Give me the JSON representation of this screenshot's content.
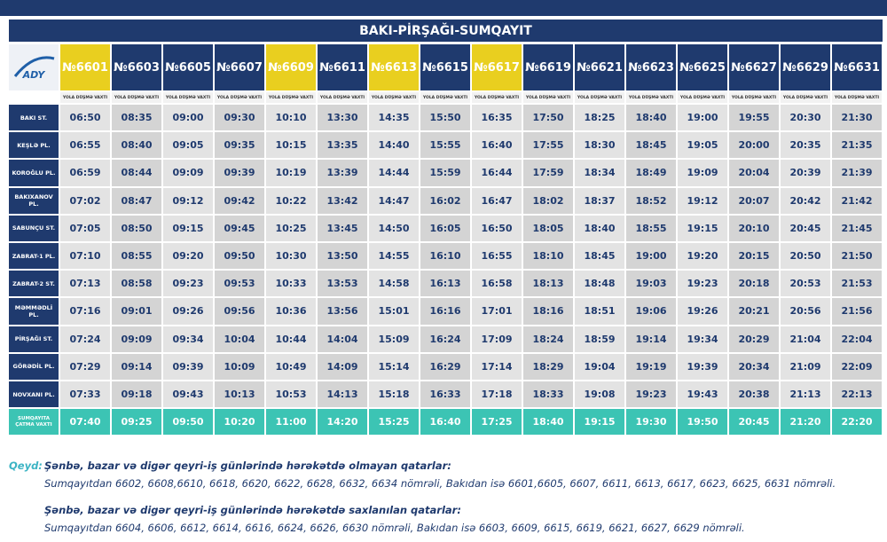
{
  "header": {
    "title": "BAKI-PİRŞAĞI-SUMQAYIT",
    "logo": "ADY"
  },
  "table": {
    "trains": [
      {
        "number": "№6601",
        "color": "#e9cf1f"
      },
      {
        "number": "№6603",
        "color": "#1f3a6e"
      },
      {
        "number": "№6605",
        "color": "#1f3a6e"
      },
      {
        "number": "№6607",
        "color": "#1f3a6e"
      },
      {
        "number": "№6609",
        "color": "#e9cf1f"
      },
      {
        "number": "№6611",
        "color": "#1f3a6e"
      },
      {
        "number": "№6613",
        "color": "#e9cf1f"
      },
      {
        "number": "№6615",
        "color": "#1f3a6e"
      },
      {
        "number": "№6617",
        "color": "#e9cf1f"
      },
      {
        "number": "№6619",
        "color": "#1f3a6e"
      },
      {
        "number": "№6621",
        "color": "#1f3a6e"
      },
      {
        "number": "№6623",
        "color": "#1f3a6e"
      },
      {
        "number": "№6625",
        "color": "#1f3a6e"
      },
      {
        "number": "№6627",
        "color": "#1f3a6e"
      },
      {
        "number": "№6629",
        "color": "#1f3a6e"
      },
      {
        "number": "№6631",
        "color": "#1f3a6e"
      }
    ],
    "departure_label": "YOLA DÜŞMƏ VAXTI",
    "rows": [
      {
        "station": "BAKI ST.",
        "times": [
          "06:50",
          "08:35",
          "09:00",
          "09:30",
          "10:10",
          "13:30",
          "14:35",
          "15:50",
          "16:35",
          "17:50",
          "18:25",
          "18:40",
          "19:00",
          "19:55",
          "20:30",
          "21:30"
        ]
      },
      {
        "station": "KEŞLƏ PL.",
        "times": [
          "06:55",
          "08:40",
          "09:05",
          "09:35",
          "10:15",
          "13:35",
          "14:40",
          "15:55",
          "16:40",
          "17:55",
          "18:30",
          "18:45",
          "19:05",
          "20:00",
          "20:35",
          "21:35"
        ]
      },
      {
        "station": "KOROĞLU PL.",
        "times": [
          "06:59",
          "08:44",
          "09:09",
          "09:39",
          "10:19",
          "13:39",
          "14:44",
          "15:59",
          "16:44",
          "17:59",
          "18:34",
          "18:49",
          "19:09",
          "20:04",
          "20:39",
          "21:39"
        ]
      },
      {
        "station": "BAKIXANOV PL.",
        "times": [
          "07:02",
          "08:47",
          "09:12",
          "09:42",
          "10:22",
          "13:42",
          "14:47",
          "16:02",
          "16:47",
          "18:02",
          "18:37",
          "18:52",
          "19:12",
          "20:07",
          "20:42",
          "21:42"
        ]
      },
      {
        "station": "SABUNÇU ST.",
        "times": [
          "07:05",
          "08:50",
          "09:15",
          "09:45",
          "10:25",
          "13:45",
          "14:50",
          "16:05",
          "16:50",
          "18:05",
          "18:40",
          "18:55",
          "19:15",
          "20:10",
          "20:45",
          "21:45"
        ]
      },
      {
        "station": "ZABRAT-1 PL.",
        "times": [
          "07:10",
          "08:55",
          "09:20",
          "09:50",
          "10:30",
          "13:50",
          "14:55",
          "16:10",
          "16:55",
          "18:10",
          "18:45",
          "19:00",
          "19:20",
          "20:15",
          "20:50",
          "21:50"
        ]
      },
      {
        "station": "ZABRAT-2 ST.",
        "times": [
          "07:13",
          "08:58",
          "09:23",
          "09:53",
          "10:33",
          "13:53",
          "14:58",
          "16:13",
          "16:58",
          "18:13",
          "18:48",
          "19:03",
          "19:23",
          "20:18",
          "20:53",
          "21:53"
        ]
      },
      {
        "station": "MƏMMƏDLİ PL.",
        "times": [
          "07:16",
          "09:01",
          "09:26",
          "09:56",
          "10:36",
          "13:56",
          "15:01",
          "16:16",
          "17:01",
          "18:16",
          "18:51",
          "19:06",
          "19:26",
          "20:21",
          "20:56",
          "21:56"
        ]
      },
      {
        "station": "PİRŞAĞI ST.",
        "times": [
          "07:24",
          "09:09",
          "09:34",
          "10:04",
          "10:44",
          "14:04",
          "15:09",
          "16:24",
          "17:09",
          "18:24",
          "18:59",
          "19:14",
          "19:34",
          "20:29",
          "21:04",
          "22:04"
        ]
      },
      {
        "station": "GÖRƏDİL PL.",
        "times": [
          "07:29",
          "09:14",
          "09:39",
          "10:09",
          "10:49",
          "14:09",
          "15:14",
          "16:29",
          "17:14",
          "18:29",
          "19:04",
          "19:19",
          "19:39",
          "20:34",
          "21:09",
          "22:09"
        ]
      },
      {
        "station": "NOVXANI PL.",
        "times": [
          "07:33",
          "09:18",
          "09:43",
          "10:13",
          "10:53",
          "14:13",
          "15:18",
          "16:33",
          "17:18",
          "18:33",
          "19:08",
          "19:23",
          "19:43",
          "20:38",
          "21:13",
          "22:13"
        ]
      }
    ],
    "arrival": {
      "station": "SUMQAYITA ÇATMA VAXTI",
      "times": [
        "07:40",
        "09:25",
        "09:50",
        "10:20",
        "11:00",
        "14:20",
        "15:25",
        "16:40",
        "17:25",
        "18:40",
        "19:15",
        "19:30",
        "19:50",
        "20:45",
        "21:20",
        "22:20"
      ]
    }
  },
  "notes": {
    "label": "Qeyd:",
    "heading1": "Şənbə, bazar və digər qeyri-iş günlərində hərəkətdə olmayan qatarlar:",
    "text1": "Sumqayıtdan 6602, 6608,6610, 6618, 6620, 6622, 6628, 6632, 6634 nömrəli, Bakıdan isə  6601,6605, 6607, 6611, 6613, 6617, 6623, 6625, 6631 nömrəli.",
    "heading2": "Şənbə, bazar və digər qeyri-iş günlərində hərəkətdə saxlanılan qatarlar:",
    "text2": "Sumqayıtdan 6604, 6606, 6612, 6614, 6616, 6624, 6626, 6630 nömrəli, Bakıdan isə 6603, 6609, 6615, 6619, 6621, 6627, 6629 nömrəli."
  }
}
